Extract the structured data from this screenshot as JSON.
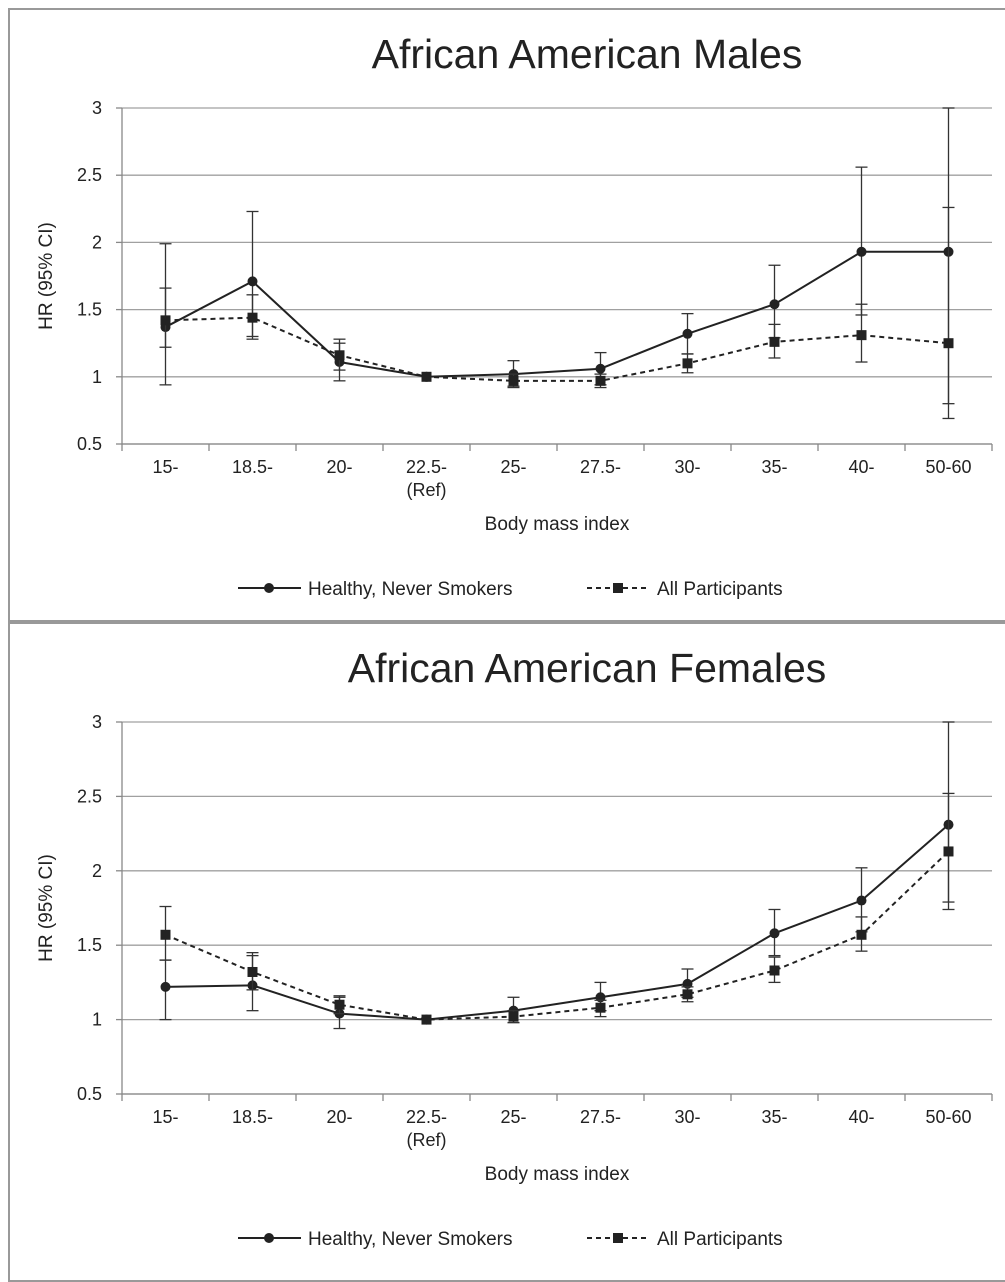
{
  "charts_meta": [
    {
      "id": "males"
    },
    {
      "id": "females"
    }
  ],
  "chart_data": [
    {
      "type": "line",
      "title": "African American Males",
      "xlabel": "Body mass index",
      "ylabel": "HR (95% CI)",
      "categories": [
        "15-",
        "18.5-",
        "20-",
        "22.5-\n(Ref)",
        "25-",
        "27.5-",
        "30-",
        "35-",
        "40-",
        "50-60"
      ],
      "ylim": [
        0.5,
        3
      ],
      "yticks": [
        "0.5",
        "1",
        "1.5",
        "2",
        "2.5",
        "3"
      ],
      "grid": true,
      "legend_position": "bottom",
      "series": [
        {
          "name": "Healthy, Never Smokers",
          "style": "solid",
          "marker": "circle",
          "values": [
            1.37,
            1.71,
            1.11,
            1.0,
            1.02,
            1.06,
            1.32,
            1.54,
            1.93,
            1.93
          ],
          "lower": [
            0.94,
            1.3,
            0.97,
            1.0,
            0.93,
            0.94,
            1.17,
            1.29,
            1.46,
            0.69
          ],
          "upper": [
            1.99,
            2.23,
            1.28,
            1.0,
            1.12,
            1.18,
            1.47,
            1.83,
            2.56,
            3.0
          ]
        },
        {
          "name": "All Participants",
          "style": "dashed",
          "marker": "square",
          "values": [
            1.42,
            1.44,
            1.16,
            1.0,
            0.97,
            0.97,
            1.1,
            1.26,
            1.31,
            1.25
          ],
          "lower": [
            1.22,
            1.28,
            1.05,
            1.0,
            0.92,
            0.92,
            1.03,
            1.14,
            1.11,
            0.8
          ],
          "upper": [
            1.66,
            1.61,
            1.25,
            1.0,
            1.02,
            1.02,
            1.17,
            1.39,
            1.54,
            2.26
          ]
        }
      ]
    },
    {
      "type": "line",
      "title": "African American Females",
      "xlabel": "Body mass index",
      "ylabel": "HR (95% CI)",
      "categories": [
        "15-",
        "18.5-",
        "20-",
        "22.5-\n(Ref)",
        "25-",
        "27.5-",
        "30-",
        "35-",
        "40-",
        "50-60"
      ],
      "ylim": [
        0.5,
        3
      ],
      "yticks": [
        "0.5",
        "1",
        "1.5",
        "2",
        "2.5",
        "3"
      ],
      "grid": true,
      "legend_position": "bottom",
      "series": [
        {
          "name": "Healthy, Never Smokers",
          "style": "solid",
          "marker": "circle",
          "values": [
            1.22,
            1.23,
            1.04,
            1.0,
            1.06,
            1.15,
            1.24,
            1.58,
            1.8,
            2.31
          ],
          "lower": [
            1.0,
            1.06,
            0.94,
            1.0,
            0.98,
            1.06,
            1.15,
            1.43,
            1.59,
            1.79
          ],
          "upper": [
            1.4,
            1.43,
            1.15,
            1.0,
            1.15,
            1.25,
            1.34,
            1.74,
            2.02,
            3.0
          ]
        },
        {
          "name": "All Participants",
          "style": "dashed",
          "marker": "square",
          "values": [
            1.57,
            1.32,
            1.1,
            1.0,
            1.02,
            1.08,
            1.17,
            1.33,
            1.57,
            2.13
          ],
          "lower": [
            1.4,
            1.2,
            1.04,
            1.0,
            0.98,
            1.02,
            1.12,
            1.25,
            1.46,
            1.74
          ],
          "upper": [
            1.76,
            1.45,
            1.16,
            1.0,
            1.06,
            1.13,
            1.22,
            1.42,
            1.69,
            2.52
          ]
        }
      ]
    }
  ]
}
